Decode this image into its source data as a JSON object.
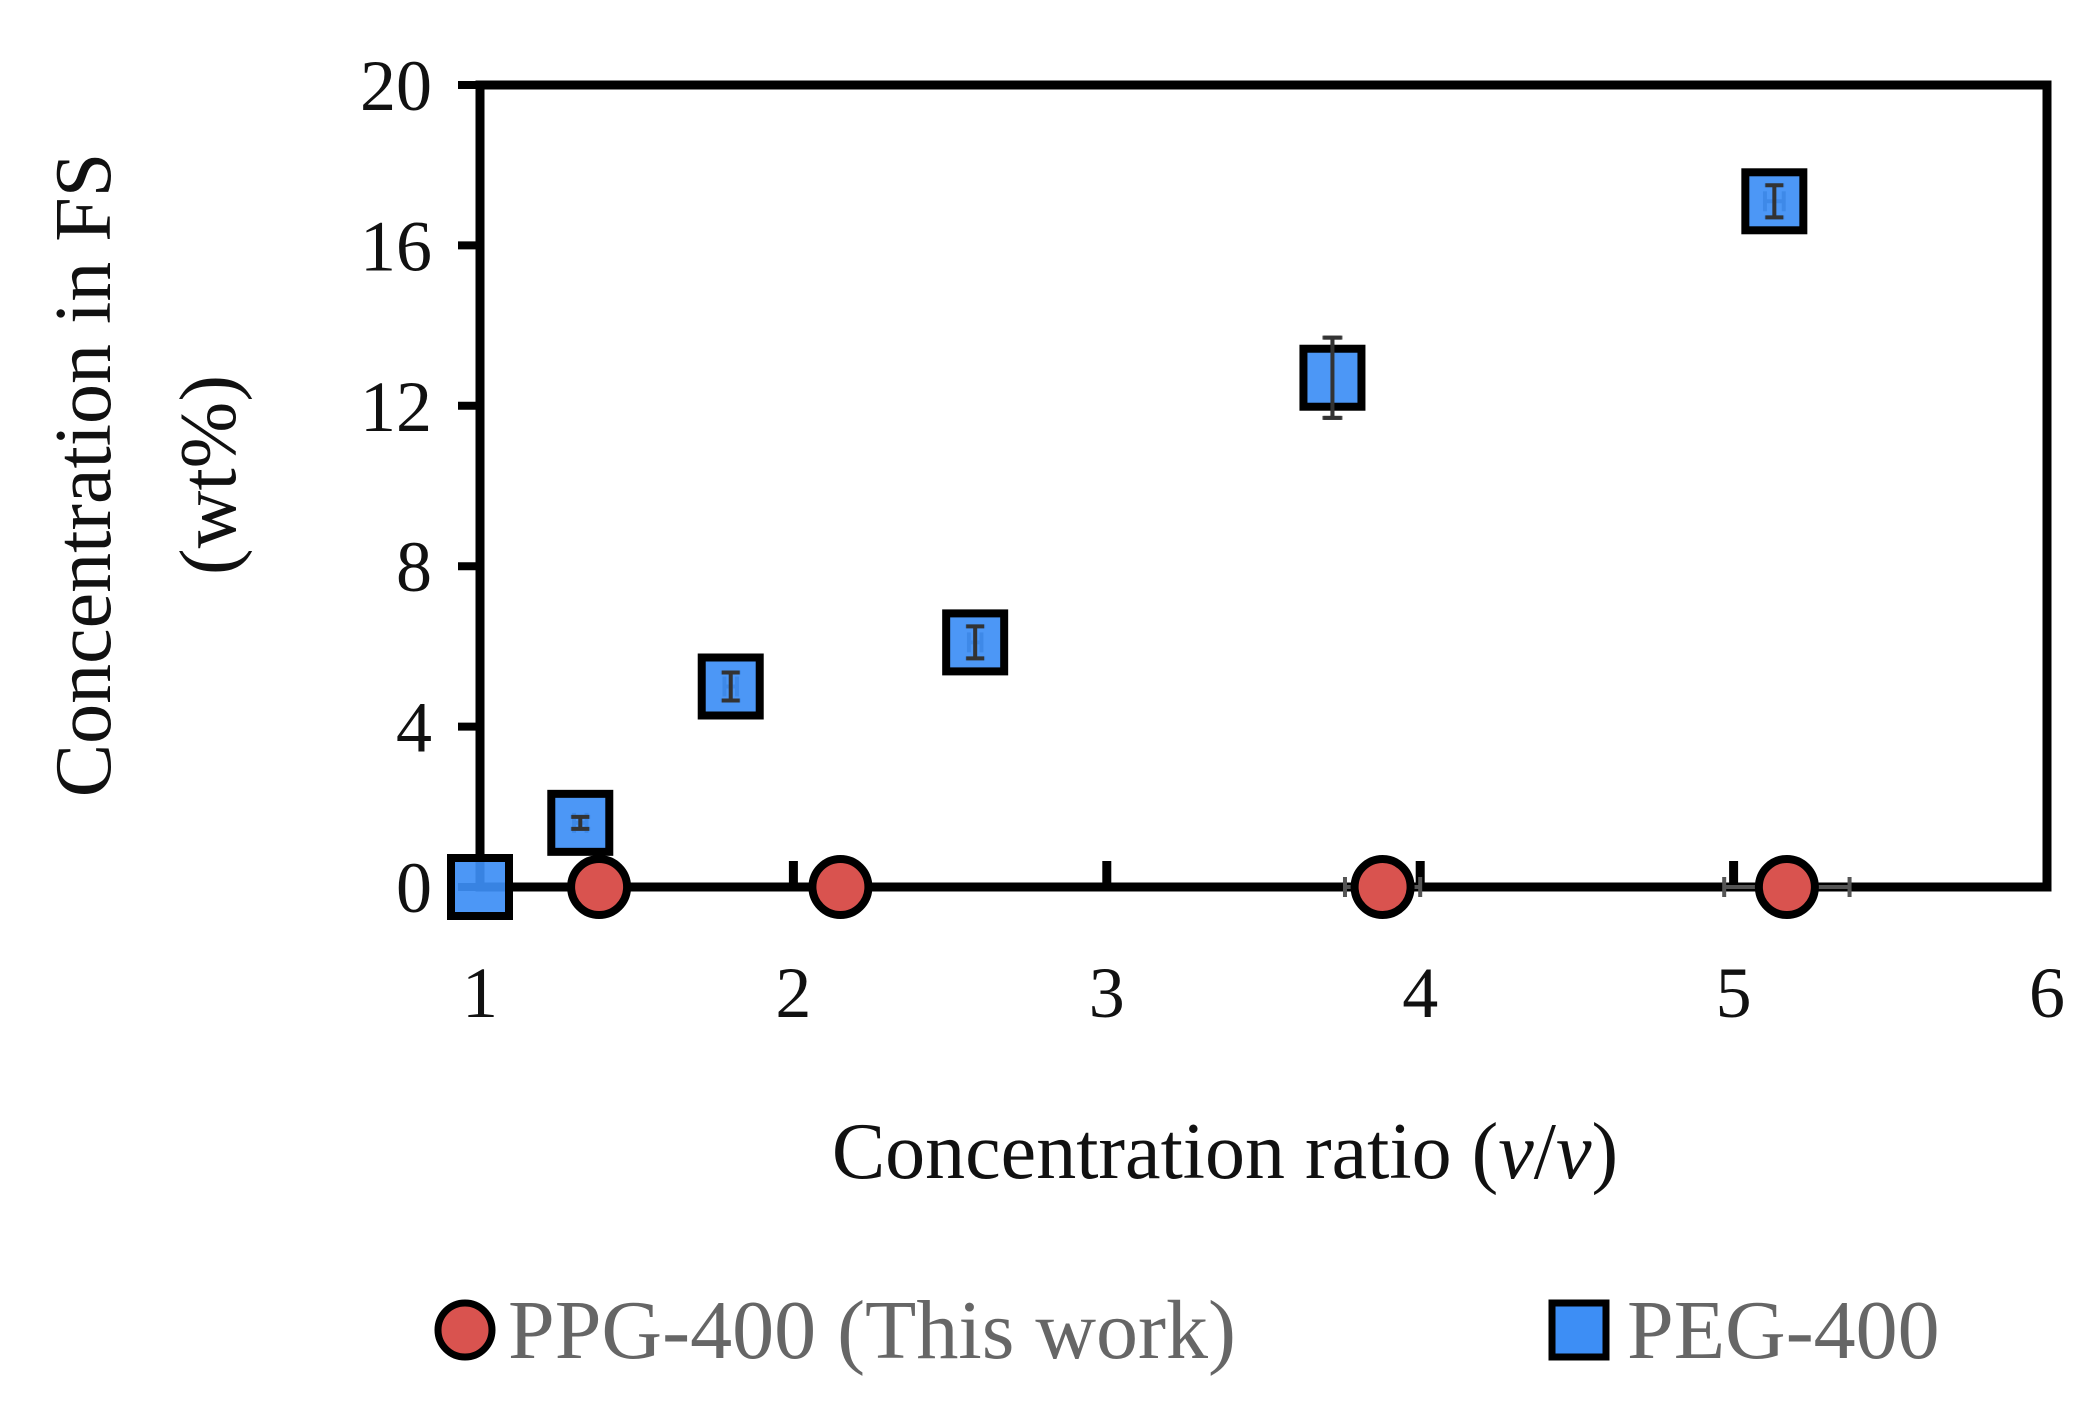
{
  "chart_data": {
    "type": "scatter",
    "title": "",
    "xlabel": "Concentration ratio (v/v)",
    "xlabel_parts": {
      "prefix": "Concentration ratio (",
      "v1": "v",
      "slash": "/",
      "v2": "v",
      "suffix": ")"
    },
    "ylabel_line1": "Concentration in FS",
    "ylabel_line2": "(wt%)",
    "xlim": [
      1,
      6
    ],
    "ylim": [
      0,
      20
    ],
    "xticks": [
      1,
      2,
      3,
      4,
      5,
      6
    ],
    "xtick_labels": [
      "1",
      "2",
      "3",
      "4",
      "5",
      "6"
    ],
    "yticks": [
      0,
      4,
      8,
      12,
      16,
      20
    ],
    "ytick_labels": [
      "0",
      "4",
      "8",
      "12",
      "16",
      "20"
    ],
    "grid": false,
    "legend_position": "bottom",
    "series": [
      {
        "name": "PPG-400 (This work)",
        "marker": "circle",
        "color": "#d9534f",
        "x": [
          1.38,
          2.15,
          3.88,
          5.17
        ],
        "y": [
          0,
          0,
          0,
          0
        ],
        "xerr": [
          0.02,
          0.03,
          0.12,
          0.2
        ],
        "yerr": [
          0,
          0,
          0,
          0
        ]
      },
      {
        "name": "PEG-400",
        "marker": "square",
        "color": "#3d8ef5",
        "x": [
          1.0,
          1.32,
          1.8,
          2.58,
          3.72,
          5.13
        ],
        "y": [
          0,
          1.6,
          5.0,
          6.1,
          12.7,
          17.1
        ],
        "xerr": [
          0,
          0.02,
          0.02,
          0.02,
          0,
          0.03
        ],
        "yerr": [
          0,
          0.15,
          0.35,
          0.4,
          1.0,
          0.4
        ]
      }
    ]
  }
}
